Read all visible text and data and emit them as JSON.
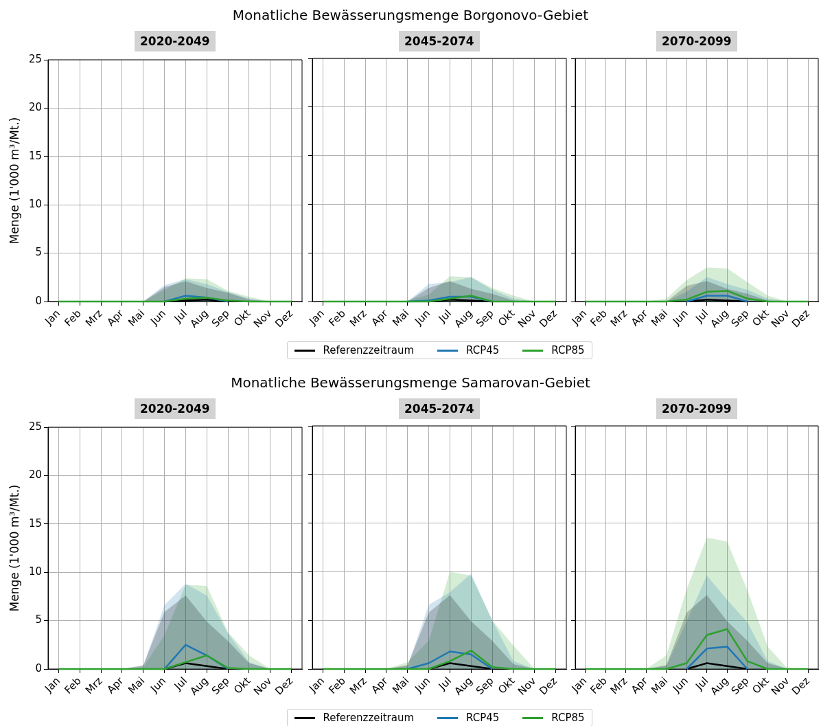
{
  "chart_data": [
    {
      "type": "line",
      "title": "2020-2049",
      "annotations": [
        "Monatliche Bewässerungsmenge Borgonovo-Gebiet"
      ],
      "ylabel": "Menge (1'000 m³/Mt.)",
      "categories": [
        "Jan",
        "Feb",
        "Mrz",
        "Apr",
        "Mai",
        "Jun",
        "Jul",
        "Aug",
        "Sep",
        "Okt",
        "Nov",
        "Dez"
      ],
      "ylim": [
        0,
        25
      ],
      "yticks": [
        0,
        5,
        10,
        15,
        20,
        25
      ],
      "grid": true,
      "marker": "none",
      "series": [
        {
          "color": "#000000",
          "values": [
            null,
            null,
            null,
            null,
            null,
            0,
            0.1,
            0.2,
            0,
            null,
            null,
            null
          ],
          "lower": [
            0,
            0,
            0,
            0,
            0,
            0,
            0,
            0,
            0,
            0,
            0,
            0
          ],
          "upper": [
            0,
            0,
            0,
            0,
            0,
            1.5,
            2.1,
            1.4,
            0.9,
            0.2,
            0,
            0
          ]
        },
        {
          "color": "#1f77b4",
          "values": [
            null,
            null,
            null,
            null,
            null,
            0,
            0.6,
            0.4,
            0,
            null,
            null,
            null
          ],
          "lower": [
            0,
            0,
            0,
            0,
            0,
            0,
            0,
            0,
            0,
            0,
            0,
            0
          ],
          "upper": [
            0,
            0,
            0,
            0,
            0,
            1.7,
            2.3,
            1.8,
            1.0,
            0.3,
            0,
            0
          ]
        },
        {
          "color": "#2ca02c",
          "values": [
            0,
            0,
            0,
            0,
            0,
            0,
            0.3,
            0.4,
            0.1,
            0,
            0,
            0
          ],
          "lower": [
            0,
            0,
            0,
            0,
            0,
            0,
            0,
            0,
            0,
            0,
            0,
            0
          ],
          "upper": [
            0,
            0,
            0,
            0,
            0,
            1.2,
            2.4,
            2.3,
            1.1,
            0.5,
            0,
            0
          ]
        }
      ]
    },
    {
      "type": "line",
      "title": "2045-2074",
      "categories": [
        "Jan",
        "Feb",
        "Mrz",
        "Apr",
        "Mai",
        "Jun",
        "Jul",
        "Aug",
        "Sep",
        "Okt",
        "Nov",
        "Dez"
      ],
      "ylim": [
        0,
        25
      ],
      "yticks": [
        0,
        5,
        10,
        15,
        20,
        25
      ],
      "tick_labels": "x",
      "grid": true,
      "marker": "none",
      "legend": "bottom",
      "series": [
        {
          "name": "Referenzzeitraum",
          "color": "#000000",
          "values": [
            null,
            null,
            null,
            null,
            null,
            0,
            0.2,
            0.1,
            0,
            null,
            null,
            null
          ],
          "lower": [
            0,
            0,
            0,
            0,
            0,
            0,
            0,
            0,
            0,
            0,
            0,
            0
          ],
          "upper": [
            0,
            0,
            0,
            0,
            0,
            1.4,
            2.1,
            1.3,
            0.8,
            0.1,
            0,
            0
          ]
        },
        {
          "name": "RCP45",
          "color": "#1f77b4",
          "values": [
            null,
            null,
            null,
            null,
            0,
            0.1,
            0.5,
            0.5,
            0,
            null,
            null,
            null
          ],
          "lower": [
            0,
            0,
            0,
            0,
            0,
            0,
            0,
            0,
            0,
            0,
            0,
            0
          ],
          "upper": [
            0,
            0,
            0,
            0,
            0,
            1.8,
            2.0,
            2.5,
            1.2,
            0.3,
            0,
            0
          ]
        },
        {
          "name": "RCP85",
          "color": "#2ca02c",
          "values": [
            0,
            0,
            0,
            0,
            0,
            0,
            0.3,
            0.6,
            0,
            0,
            0,
            0
          ],
          "lower": [
            0,
            0,
            0,
            0,
            0,
            0,
            0,
            0,
            0,
            0,
            0,
            0
          ],
          "upper": [
            0,
            0,
            0,
            0,
            0.1,
            0.7,
            2.6,
            2.5,
            1.4,
            0.6,
            0,
            0
          ]
        }
      ]
    },
    {
      "type": "line",
      "title": "2070-2099",
      "categories": [
        "Jan",
        "Feb",
        "Mrz",
        "Apr",
        "Mai",
        "Jun",
        "Jul",
        "Aug",
        "Sep",
        "Okt",
        "Nov",
        "Dez"
      ],
      "ylim": [
        0,
        25
      ],
      "yticks": [
        0,
        5,
        10,
        15,
        20,
        25
      ],
      "tick_labels": "x",
      "grid": true,
      "marker": "none",
      "series": [
        {
          "color": "#000000",
          "values": [
            null,
            null,
            null,
            null,
            null,
            0,
            0.2,
            0.1,
            0,
            null,
            null,
            null
          ],
          "lower": [
            0,
            0,
            0,
            0,
            0,
            0,
            0,
            0,
            0,
            0,
            0,
            0
          ],
          "upper": [
            0,
            0,
            0,
            0,
            0,
            1.6,
            2.1,
            1.3,
            0.8,
            0.1,
            0,
            0
          ]
        },
        {
          "color": "#1f77b4",
          "values": [
            null,
            null,
            null,
            null,
            null,
            0,
            0.6,
            0.6,
            0,
            null,
            null,
            null
          ],
          "lower": [
            0,
            0,
            0,
            0,
            0,
            0,
            0,
            0,
            0,
            0,
            0,
            0
          ],
          "upper": [
            0,
            0,
            0,
            0,
            0,
            1.0,
            2.5,
            1.8,
            1.2,
            0.3,
            0,
            0
          ]
        },
        {
          "color": "#2ca02c",
          "values": [
            0,
            0,
            0,
            0,
            0,
            0.2,
            1.0,
            1.1,
            0.3,
            0,
            0,
            0
          ],
          "lower": [
            0,
            0,
            0,
            0,
            0,
            0,
            0,
            0,
            0,
            0,
            0,
            0
          ],
          "upper": [
            0,
            0,
            0,
            0,
            0.3,
            2.2,
            3.5,
            3.4,
            2.0,
            0.6,
            0,
            0
          ]
        }
      ]
    },
    {
      "type": "line",
      "title": "2020-2049",
      "annotations": [
        "Monatliche Bewässerungsmenge Samarovan-Gebiet"
      ],
      "ylabel": "Menge (1'000 m³/Mt.)",
      "categories": [
        "Jan",
        "Feb",
        "Mrz",
        "Apr",
        "Mai",
        "Jun",
        "Jul",
        "Aug",
        "Sep",
        "Okt",
        "Nov",
        "Dez"
      ],
      "ylim": [
        0,
        25
      ],
      "yticks": [
        0,
        5,
        10,
        15,
        20,
        25
      ],
      "grid": true,
      "marker": "none",
      "series": [
        {
          "color": "#000000",
          "values": [
            null,
            null,
            null,
            null,
            null,
            0,
            0.6,
            0.3,
            0,
            null,
            null,
            null
          ],
          "lower": [
            0,
            0,
            0,
            0,
            0,
            0,
            0,
            0,
            0,
            0,
            0,
            0
          ],
          "upper": [
            0,
            0,
            0,
            0,
            0.4,
            5.9,
            7.6,
            4.9,
            2.9,
            0.6,
            0,
            0
          ]
        },
        {
          "color": "#1f77b4",
          "values": [
            null,
            null,
            null,
            null,
            null,
            0,
            2.5,
            1.4,
            0,
            null,
            null,
            null
          ],
          "lower": [
            0,
            0,
            0,
            0,
            0,
            0,
            0,
            0,
            0,
            0,
            0,
            0
          ],
          "upper": [
            0,
            0,
            0,
            0,
            0.3,
            6.6,
            8.8,
            7.6,
            3.7,
            0.7,
            0,
            0
          ]
        },
        {
          "color": "#2ca02c",
          "values": [
            0,
            0,
            0,
            0,
            0,
            0,
            0.7,
            1.4,
            0.1,
            0,
            0,
            0
          ],
          "lower": [
            0,
            0,
            0,
            0,
            0,
            0,
            0,
            0,
            0,
            0,
            0,
            0
          ],
          "upper": [
            0,
            0,
            0,
            0,
            0.2,
            3.5,
            8.7,
            8.6,
            3.8,
            1.4,
            0,
            0
          ]
        }
      ]
    },
    {
      "type": "line",
      "title": "2045-2074",
      "categories": [
        "Jan",
        "Feb",
        "Mrz",
        "Apr",
        "Mai",
        "Jun",
        "Jul",
        "Aug",
        "Sep",
        "Okt",
        "Nov",
        "Dez"
      ],
      "ylim": [
        0,
        25
      ],
      "yticks": [
        0,
        5,
        10,
        15,
        20,
        25
      ],
      "tick_labels": "x",
      "grid": true,
      "marker": "none",
      "legend": "bottom",
      "series": [
        {
          "name": "Referenzzeitraum",
          "color": "#000000",
          "values": [
            null,
            null,
            null,
            null,
            null,
            0,
            0.6,
            0.3,
            0,
            null,
            null,
            null
          ],
          "lower": [
            0,
            0,
            0,
            0,
            0,
            0,
            0,
            0,
            0,
            0,
            0,
            0
          ],
          "upper": [
            0,
            0,
            0,
            0,
            0.4,
            5.8,
            7.6,
            4.9,
            2.9,
            0.5,
            0,
            0
          ]
        },
        {
          "name": "RCP45",
          "color": "#1f77b4",
          "values": [
            null,
            null,
            null,
            null,
            0,
            0.6,
            1.8,
            1.5,
            0,
            null,
            null,
            null
          ],
          "lower": [
            0,
            0,
            0,
            0,
            0,
            0,
            0,
            0,
            0,
            0,
            0,
            0
          ],
          "upper": [
            0,
            0,
            0,
            0,
            0.3,
            6.6,
            7.9,
            9.8,
            5.0,
            0.8,
            0,
            0
          ]
        },
        {
          "name": "RCP85",
          "color": "#2ca02c",
          "values": [
            0,
            0,
            0,
            0,
            0,
            0,
            0.8,
            1.9,
            0.2,
            0,
            0,
            0
          ],
          "lower": [
            0,
            0,
            0,
            0,
            0,
            0,
            0,
            0,
            0,
            0,
            0,
            0
          ],
          "upper": [
            0,
            0,
            0,
            0,
            0.7,
            2.9,
            10.0,
            9.6,
            5.0,
            2.4,
            0,
            0
          ]
        }
      ]
    },
    {
      "type": "line",
      "title": "2070-2099",
      "categories": [
        "Jan",
        "Feb",
        "Mrz",
        "Apr",
        "Mai",
        "Jun",
        "Jul",
        "Aug",
        "Sep",
        "Okt",
        "Nov",
        "Dez"
      ],
      "ylim": [
        0,
        25
      ],
      "yticks": [
        0,
        5,
        10,
        15,
        20,
        25
      ],
      "tick_labels": "x",
      "grid": true,
      "marker": "none",
      "series": [
        {
          "color": "#000000",
          "values": [
            null,
            null,
            null,
            null,
            null,
            0,
            0.6,
            0.3,
            0,
            null,
            null,
            null
          ],
          "lower": [
            0,
            0,
            0,
            0,
            0,
            0,
            0,
            0,
            0,
            0,
            0,
            0
          ],
          "upper": [
            0,
            0,
            0,
            0,
            0.4,
            5.8,
            7.6,
            4.9,
            2.9,
            0.6,
            0,
            0
          ]
        },
        {
          "color": "#1f77b4",
          "values": [
            null,
            null,
            null,
            null,
            null,
            0,
            2.1,
            2.3,
            0,
            null,
            null,
            null
          ],
          "lower": [
            0,
            0,
            0,
            0,
            0,
            0,
            0,
            0,
            0,
            0,
            0,
            0
          ],
          "upper": [
            0,
            0,
            0,
            0,
            0.3,
            4.9,
            9.6,
            7.1,
            4.8,
            0.8,
            0,
            0
          ]
        },
        {
          "color": "#2ca02c",
          "values": [
            0,
            0,
            0,
            0,
            0,
            0.6,
            3.5,
            4.1,
            0.8,
            0,
            0,
            0
          ],
          "lower": [
            0,
            0,
            0,
            0,
            0,
            0,
            0,
            0,
            0,
            0,
            0,
            0
          ],
          "upper": [
            0,
            0,
            0,
            0,
            1.4,
            8.2,
            13.5,
            13.1,
            8.1,
            2.3,
            0,
            0
          ]
        }
      ]
    }
  ]
}
